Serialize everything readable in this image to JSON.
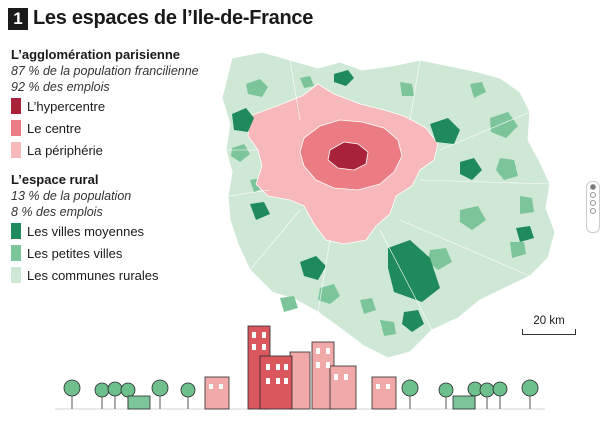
{
  "title": {
    "number": "1",
    "text": "Les espaces de l’Ile-de-France"
  },
  "legend": {
    "agglo": {
      "heading": "L’agglomération parisienne",
      "sub1": "87 % de la population francilienne",
      "sub2": "92 % des emplois",
      "items": [
        {
          "label": "L’hypercentre",
          "color": "#a8233a"
        },
        {
          "label": "Le centre",
          "color": "#ec7c84"
        },
        {
          "label": "La périphérie",
          "color": "#f6b8ba"
        }
      ]
    },
    "rural": {
      "heading": "L’espace rural",
      "sub1": "13 % de la population",
      "sub2": "8 % des emplois",
      "items": [
        {
          "label": "Les villes moyennes",
          "color": "#1f8a5c"
        },
        {
          "label": "Les petites villes",
          "color": "#7cc49a"
        },
        {
          "label": "Les communes rurales",
          "color": "#cfe8d6"
        }
      ]
    }
  },
  "scale": {
    "label": "20 km"
  },
  "colors": {
    "rural": "#cfe8d6",
    "small_towns": "#7cc49a",
    "medium_towns": "#1f8a5c",
    "periphery": "#f6b8ba",
    "centre": "#ec7c84",
    "hypercentre": "#a8233a",
    "building_pink": "#f0a9a8",
    "building_red": "#d9575d",
    "tree": "#6dbf8b"
  }
}
